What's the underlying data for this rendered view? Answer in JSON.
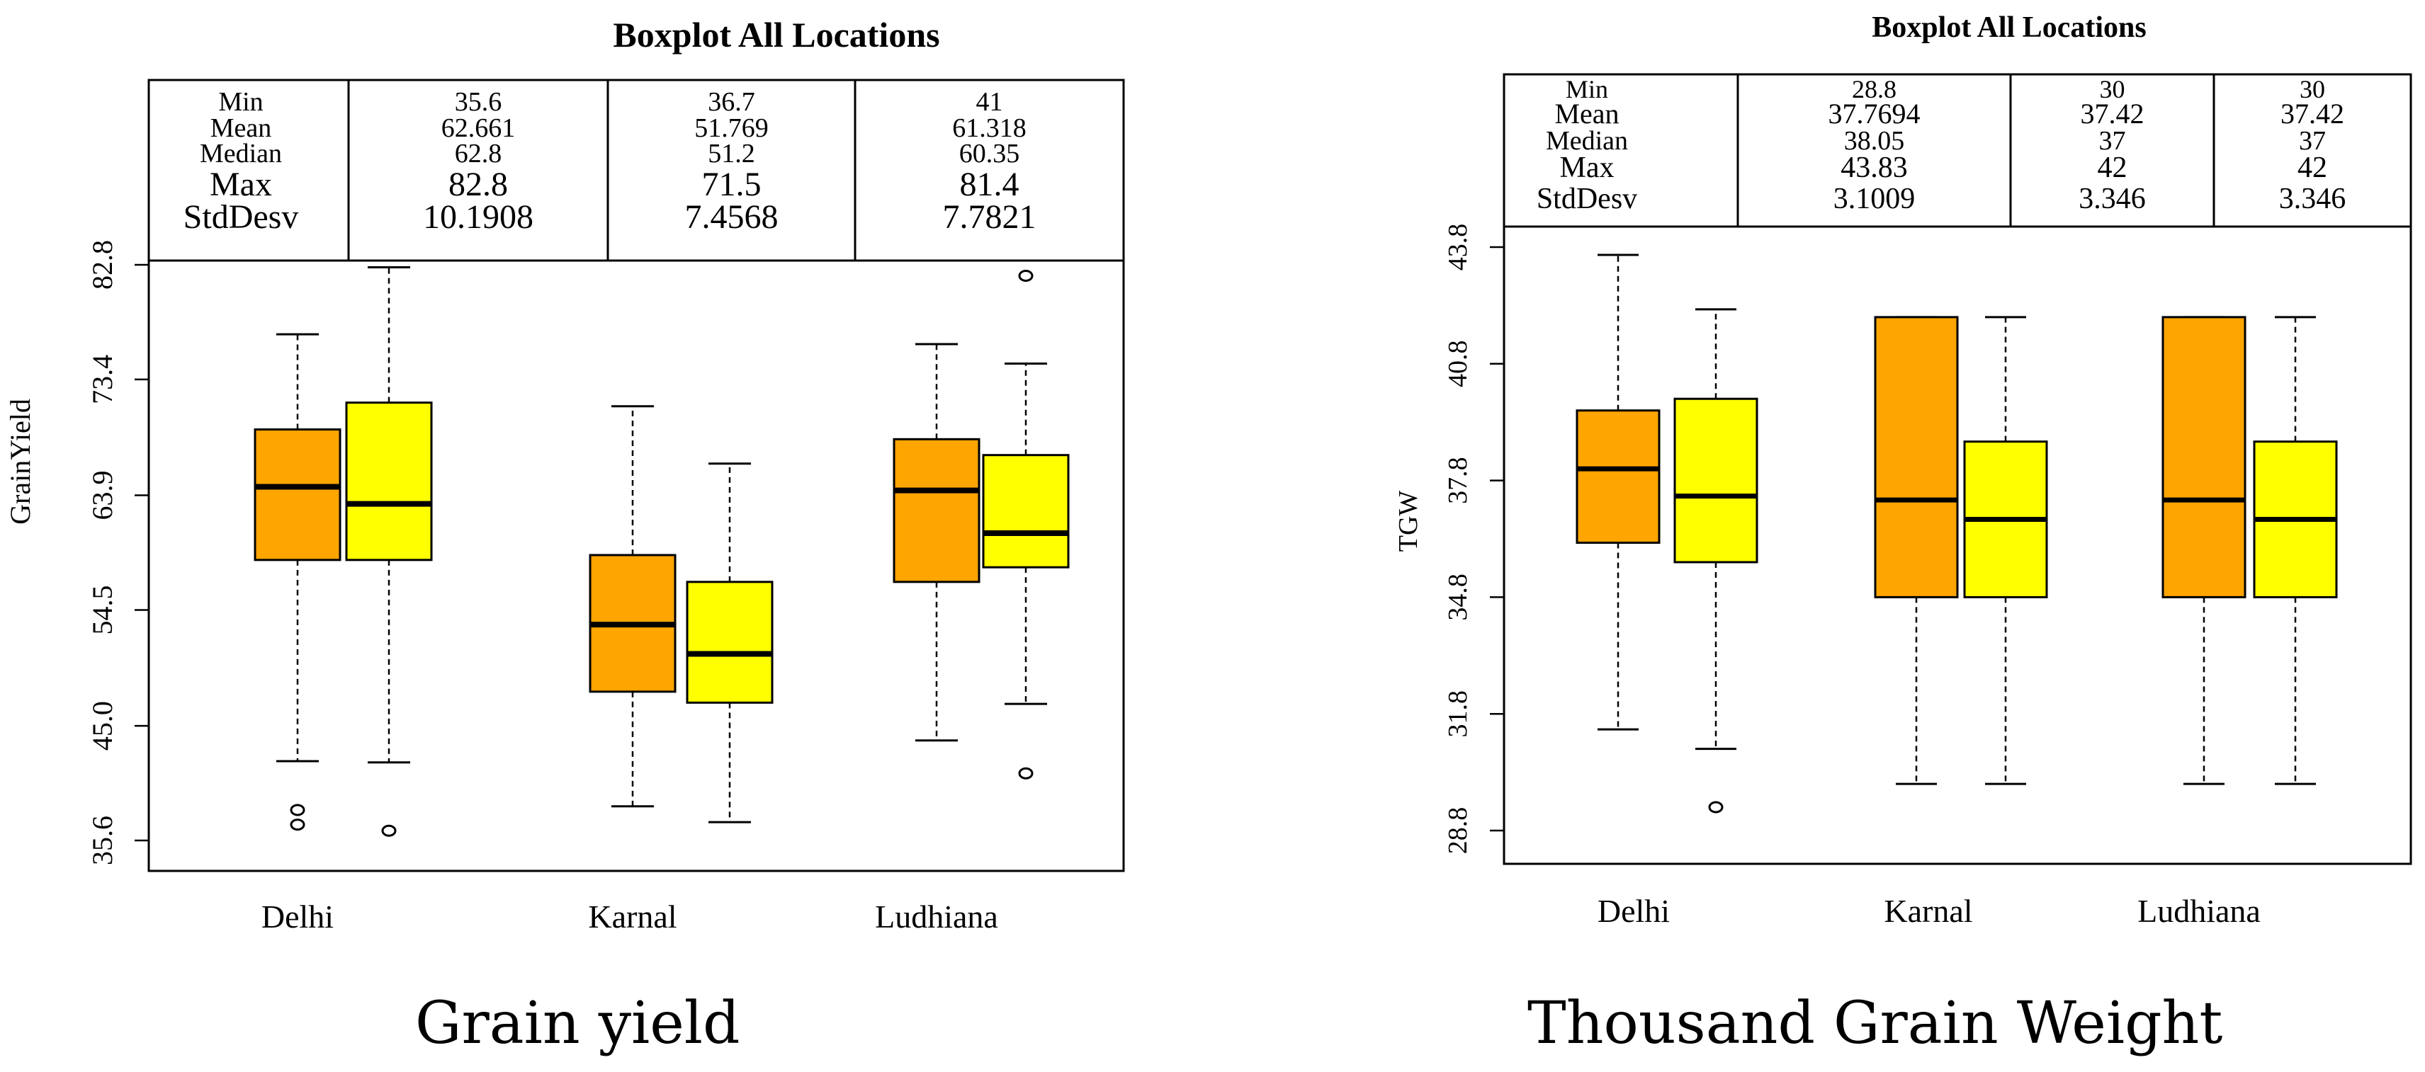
{
  "colors": {
    "orange": "#FFA500",
    "yellow": "#FFFF00",
    "stroke": "#000000"
  },
  "chart_data": [
    {
      "type": "boxplot",
      "title": "Boxplot All Locations",
      "ylabel": "GrainYield",
      "xlabel": "",
      "caption": "Grain yield",
      "ylim": [
        35.6,
        82.8
      ],
      "yticks": [
        "35.6",
        "45.0",
        "54.5",
        "63.9",
        "73.4",
        "82.8"
      ],
      "categories": [
        "Delhi",
        "Karnal",
        "Ludhiana"
      ],
      "stats_labels": [
        "Min",
        "Mean",
        "Median",
        "Max",
        "StdDesv"
      ],
      "stats": [
        {
          "location": "Delhi",
          "Min": "35.6",
          "Mean": "62.661",
          "Median": "62.8",
          "Max": "82.8",
          "StdDesv": "10.1908"
        },
        {
          "location": "Karnal",
          "Min": "36.7",
          "Mean": "51.769",
          "Median": "51.2",
          "Max": "71.5",
          "StdDesv": "7.4568"
        },
        {
          "location": "Ludhiana",
          "Min": "41",
          "Mean": "61.318",
          "Median": "60.35",
          "Max": "81.4",
          "StdDesv": "7.7821"
        }
      ],
      "boxes": [
        {
          "location": "Delhi",
          "color": "orange",
          "whisker_low": 42.1,
          "q1": 58.6,
          "median": 64.6,
          "q3": 69.3,
          "whisker_high": 77.1,
          "outliers": [
            38.1,
            36.9
          ]
        },
        {
          "location": "Delhi",
          "color": "yellow",
          "whisker_low": 42.0,
          "q1": 58.6,
          "median": 63.2,
          "q3": 71.5,
          "whisker_high": 82.6,
          "outliers": [
            36.4
          ]
        },
        {
          "location": "Karnal",
          "color": "orange",
          "whisker_low": 38.4,
          "q1": 47.8,
          "median": 53.3,
          "q3": 59.0,
          "whisker_high": 71.2,
          "outliers": []
        },
        {
          "location": "Karnal",
          "color": "yellow",
          "whisker_low": 37.1,
          "q1": 46.9,
          "median": 50.9,
          "q3": 56.8,
          "whisker_high": 66.5,
          "outliers": []
        },
        {
          "location": "Ludhiana",
          "color": "orange",
          "whisker_low": 43.8,
          "q1": 56.8,
          "median": 64.3,
          "q3": 68.5,
          "whisker_high": 76.3,
          "outliers": []
        },
        {
          "location": "Ludhiana",
          "color": "yellow",
          "whisker_low": 46.8,
          "q1": 58.0,
          "median": 60.8,
          "q3": 67.2,
          "whisker_high": 74.7,
          "outliers": [
            81.9,
            41.1
          ]
        }
      ]
    },
    {
      "type": "boxplot",
      "title": "Boxplot All Locations",
      "ylabel": "TGW",
      "xlabel": "",
      "caption": "Thousand Grain Weight",
      "ylim": [
        28.8,
        43.8
      ],
      "yticks": [
        "28.8",
        "31.8",
        "34.8",
        "37.8",
        "40.8",
        "43.8"
      ],
      "categories": [
        "Delhi",
        "Karnal",
        "Ludhiana"
      ],
      "stats_labels": [
        "Min",
        "Mean",
        "Median",
        "Max",
        "StdDesv"
      ],
      "stats": [
        {
          "location": "Delhi",
          "Min": "28.8",
          "Mean": "37.7694",
          "Median": "38.05",
          "Max": "43.83",
          "StdDesv": "3.1009"
        },
        {
          "location": "Karnal",
          "Min": "30",
          "Mean": "37.42",
          "Median": "37",
          "Max": "42",
          "StdDesv": "3.346"
        },
        {
          "location": "Ludhiana",
          "Min": "30",
          "Mean": "37.42",
          "Median": "37",
          "Max": "42",
          "StdDesv": "3.346"
        }
      ],
      "boxes": [
        {
          "location": "Delhi",
          "color": "orange",
          "whisker_low": 31.4,
          "q1": 36.2,
          "median": 38.1,
          "q3": 39.6,
          "whisker_high": 43.6,
          "outliers": []
        },
        {
          "location": "Delhi",
          "color": "yellow",
          "whisker_low": 30.9,
          "q1": 35.7,
          "median": 37.4,
          "q3": 39.9,
          "whisker_high": 42.2,
          "outliers": [
            29.4
          ]
        },
        {
          "location": "Karnal",
          "color": "orange",
          "whisker_low": 30.0,
          "q1": 34.8,
          "median": 37.3,
          "q3": 42.0,
          "whisker_high": 42.0,
          "outliers": []
        },
        {
          "location": "Karnal",
          "color": "yellow",
          "whisker_low": 30.0,
          "q1": 34.8,
          "median": 36.8,
          "q3": 38.8,
          "whisker_high": 42.0,
          "outliers": []
        },
        {
          "location": "Ludhiana",
          "color": "orange",
          "whisker_low": 30.0,
          "q1": 34.8,
          "median": 37.3,
          "q3": 42.0,
          "whisker_high": 42.0,
          "outliers": []
        },
        {
          "location": "Ludhiana",
          "color": "yellow",
          "whisker_low": 30.0,
          "q1": 34.8,
          "median": 36.8,
          "q3": 38.8,
          "whisker_high": 42.0,
          "outliers": []
        }
      ]
    }
  ]
}
